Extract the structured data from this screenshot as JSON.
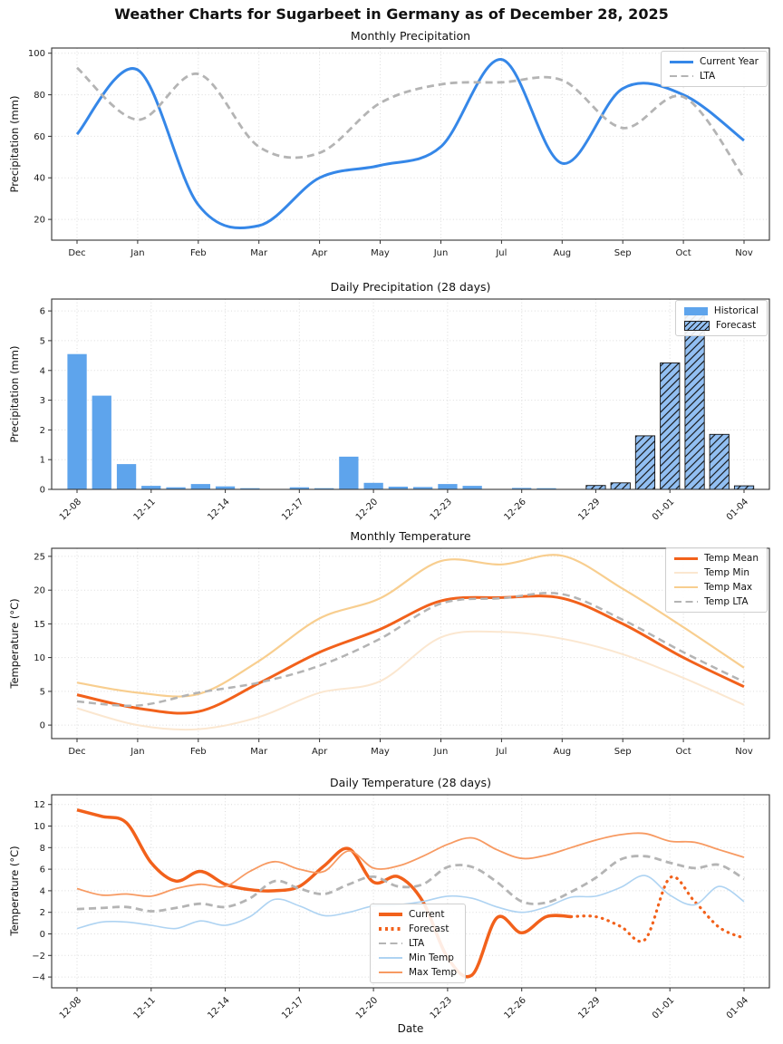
{
  "page_title": "Weather Charts for Sugarbeet in Germany as of December 28, 2025",
  "chart_data": [
    {
      "id": "monthly-precipitation",
      "type": "line",
      "title": "Monthly Precipitation",
      "ylabel": "Precipitation (mm)",
      "categories": [
        "Dec",
        "Jan",
        "Feb",
        "Mar",
        "Apr",
        "May",
        "Jun",
        "Jul",
        "Aug",
        "Sep",
        "Oct",
        "Nov"
      ],
      "ylim": [
        10,
        102.5
      ],
      "y_ticks": [
        20,
        40,
        60,
        80,
        100
      ],
      "x_tick_every": 1,
      "rotate_x_labels": false,
      "grid": true,
      "legend_position": "top-right",
      "series": [
        {
          "name": "Current Year",
          "kind": "line",
          "color": "#3587E8",
          "dash": "solid",
          "width": 3,
          "values": [
            61,
            92,
            27,
            17,
            40,
            46,
            55,
            97,
            47,
            83,
            80,
            58
          ]
        },
        {
          "name": "LTA",
          "kind": "line",
          "color": "#B4B4B4",
          "dash": "dashed",
          "width": 2.8,
          "values": [
            93,
            68,
            90,
            55,
            52,
            76,
            85,
            86,
            87,
            64,
            79,
            40
          ]
        }
      ]
    },
    {
      "id": "daily-precipitation",
      "type": "bar",
      "title": "Daily Precipitation (28 days)",
      "ylabel": "Precipitation (mm)",
      "categories": [
        "12-08",
        "12-09",
        "12-10",
        "12-11",
        "12-12",
        "12-13",
        "12-14",
        "12-15",
        "12-16",
        "12-17",
        "12-18",
        "12-19",
        "12-20",
        "12-21",
        "12-22",
        "12-23",
        "12-24",
        "12-25",
        "12-26",
        "12-27",
        "12-28",
        "12-29",
        "12-30",
        "12-31",
        "01-01",
        "01-02",
        "01-03",
        "01-04"
      ],
      "ylim": [
        0,
        6.4
      ],
      "y_ticks": [
        0,
        1,
        2,
        3,
        4,
        5,
        6
      ],
      "x_tick_every": 3,
      "rotate_x_labels": true,
      "grid": true,
      "legend_position": "top-right",
      "series": [
        {
          "name": "Historical",
          "kind": "bar",
          "color": "#5EA4EC",
          "hatch": false,
          "values": [
            4.55,
            3.15,
            0.85,
            0.12,
            0.07,
            0.18,
            0.1,
            0.04,
            0,
            0.07,
            0.04,
            1.1,
            0.22,
            0.09,
            0.08,
            0.18,
            0.12,
            0,
            0.05,
            0.04,
            0,
            null,
            null,
            null,
            null,
            null,
            null,
            null
          ]
        },
        {
          "name": "Forecast",
          "kind": "bar",
          "color": "#92BFF2",
          "hatch": true,
          "hatch_color": "#111111",
          "values": [
            null,
            null,
            null,
            null,
            null,
            null,
            null,
            null,
            null,
            null,
            null,
            null,
            null,
            null,
            null,
            null,
            null,
            null,
            null,
            null,
            null,
            0.13,
            0.22,
            1.8,
            4.25,
            6.1,
            1.85,
            0.12
          ]
        }
      ]
    },
    {
      "id": "monthly-temperature",
      "type": "line",
      "title": "Monthly Temperature",
      "ylabel": "Temperature (°C)",
      "categories": [
        "Dec",
        "Jan",
        "Feb",
        "Mar",
        "Apr",
        "May",
        "Jun",
        "Jul",
        "Aug",
        "Sep",
        "Oct",
        "Nov"
      ],
      "ylim": [
        -2,
        26.2
      ],
      "y_ticks": [
        0,
        5,
        10,
        15,
        20,
        25
      ],
      "x_tick_every": 1,
      "rotate_x_labels": false,
      "grid": true,
      "legend_position": "top-right",
      "series": [
        {
          "name": "Temp Mean",
          "kind": "line",
          "color": "#F2611B",
          "dash": "solid",
          "width": 3,
          "values": [
            4.5,
            2.5,
            2.0,
            6.2,
            10.8,
            14.2,
            18.4,
            18.9,
            18.8,
            15.0,
            10.0,
            5.7
          ]
        },
        {
          "name": "Temp Min",
          "kind": "line",
          "color": "#FBE7D0",
          "dash": "solid",
          "width": 2,
          "values": [
            2.5,
            0.0,
            -0.6,
            1.2,
            4.8,
            6.5,
            13.0,
            13.8,
            12.8,
            10.5,
            7.0,
            3.0
          ]
        },
        {
          "name": "Temp Max",
          "kind": "line",
          "color": "#F8CE8F",
          "dash": "solid",
          "width": 2.2,
          "values": [
            6.3,
            4.8,
            4.6,
            9.5,
            15.8,
            18.8,
            24.3,
            23.8,
            25.1,
            20.2,
            14.5,
            8.5
          ]
        },
        {
          "name": "Temp LTA",
          "kind": "line",
          "color": "#B4B4B4",
          "dash": "dashed",
          "width": 2.5,
          "values": [
            3.5,
            2.9,
            4.8,
            6.3,
            8.8,
            12.8,
            18.0,
            18.8,
            19.4,
            15.6,
            10.8,
            6.4
          ]
        }
      ]
    },
    {
      "id": "daily-temperature",
      "type": "line",
      "title": "Daily Temperature (28 days)",
      "ylabel": "Temperature (°C)",
      "xlabel": "Date",
      "categories": [
        "12-08",
        "12-09",
        "12-10",
        "12-11",
        "12-12",
        "12-13",
        "12-14",
        "12-15",
        "12-16",
        "12-17",
        "12-18",
        "12-19",
        "12-20",
        "12-21",
        "12-22",
        "12-23",
        "12-24",
        "12-25",
        "12-26",
        "12-27",
        "12-28",
        "12-29",
        "12-30",
        "12-31",
        "01-01",
        "01-02",
        "01-03",
        "01-04"
      ],
      "ylim": [
        -5,
        12.9
      ],
      "y_ticks": [
        -4,
        -2,
        0,
        2,
        4,
        6,
        8,
        10,
        12
      ],
      "x_tick_every": 3,
      "rotate_x_labels": true,
      "grid": true,
      "legend_position": "inside-left",
      "series": [
        {
          "name": "Current",
          "kind": "line",
          "color": "#F2611B",
          "dash": "solid",
          "width": 3.5,
          "values": [
            11.5,
            10.9,
            10.3,
            6.6,
            4.9,
            5.8,
            4.6,
            4.1,
            4.0,
            4.4,
            6.3,
            7.9,
            4.8,
            5.3,
            3.0,
            -2.2,
            -3.8,
            1.5,
            0.1,
            1.6,
            1.6,
            null,
            null,
            null,
            null,
            null,
            null,
            null
          ]
        },
        {
          "name": "Forecast",
          "kind": "line",
          "color": "#F2611B",
          "dash": "dotted",
          "width": 3.2,
          "values": [
            null,
            null,
            null,
            null,
            null,
            null,
            null,
            null,
            null,
            null,
            null,
            null,
            null,
            null,
            null,
            null,
            null,
            null,
            null,
            null,
            1.6,
            1.6,
            0.7,
            -0.5,
            5.2,
            3.0,
            0.6,
            -0.4
          ]
        },
        {
          "name": "LTA",
          "kind": "line",
          "color": "#B4B4B4",
          "dash": "dashed",
          "width": 2.8,
          "values": [
            2.3,
            2.4,
            2.5,
            2.1,
            2.4,
            2.8,
            2.5,
            3.3,
            4.9,
            4.2,
            3.7,
            4.6,
            5.3,
            4.4,
            4.6,
            6.2,
            6.2,
            4.8,
            3.0,
            2.9,
            3.9,
            5.2,
            6.9,
            7.2,
            6.6,
            6.1,
            6.4,
            5.1
          ]
        },
        {
          "name": "Min Temp",
          "kind": "line",
          "color": "#AED3F2",
          "dash": "solid",
          "width": 1.6,
          "values": [
            0.5,
            1.1,
            1.1,
            0.8,
            0.5,
            1.2,
            0.8,
            1.6,
            3.2,
            2.6,
            1.7,
            2.0,
            2.6,
            2.7,
            3.0,
            3.5,
            3.3,
            2.5,
            2.0,
            2.5,
            3.4,
            3.5,
            4.3,
            5.4,
            3.6,
            2.7,
            4.4,
            3.0
          ]
        },
        {
          "name": "Max Temp",
          "kind": "line",
          "color": "#F79A62",
          "dash": "solid",
          "width": 1.8,
          "values": [
            4.2,
            3.6,
            3.7,
            3.5,
            4.2,
            4.6,
            4.4,
            5.8,
            6.7,
            6.0,
            5.8,
            7.7,
            6.1,
            6.3,
            7.2,
            8.3,
            8.9,
            7.8,
            7.0,
            7.3,
            8.0,
            8.7,
            9.2,
            9.3,
            8.6,
            8.5,
            7.8,
            7.1
          ]
        }
      ]
    }
  ]
}
